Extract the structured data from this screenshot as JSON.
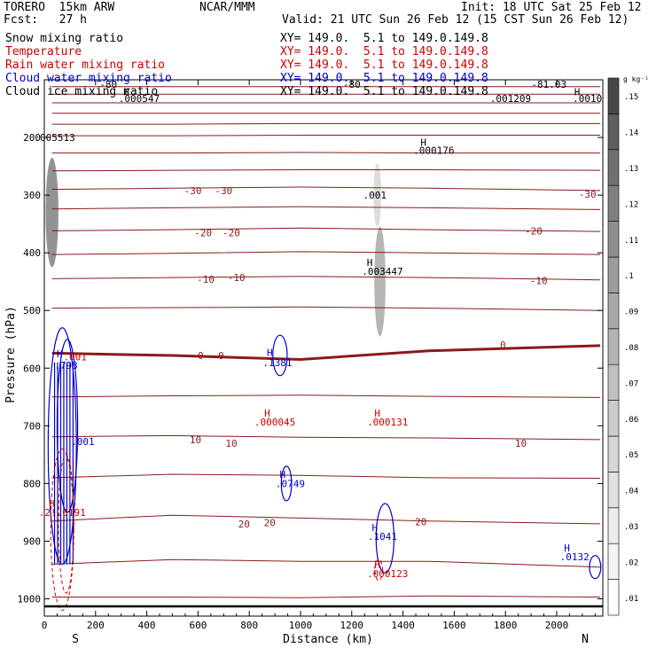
{
  "header": {
    "model": "TORERO  15km ARW",
    "org": "NCAR/MMM",
    "init": "Init: 18 UTC Sat 25 Feb 12",
    "fcst": "Fcst:   27 h",
    "valid": "Valid: 21 UTC Sun 26 Feb 12 (15 CST Sun 26 Feb 12)"
  },
  "legend": [
    {
      "name": "Snow mixing ratio",
      "xy": "XY= 149.0.  5.1 to 149.0.149.8",
      "color": "#000000"
    },
    {
      "name": "Temperature",
      "xy": "XY= 149.0.  5.1 to 149.0.149.8",
      "color": "#cc0000"
    },
    {
      "name": "Rain water mixing ratio",
      "xy": "XY= 149.0.  5.1 to 149.0.149.8",
      "color": "#cc0000"
    },
    {
      "name": "Cloud water mixing ratio",
      "xy": "XY= 149.0.  5.1 to 149.0.149.8",
      "color": "#0000cc"
    },
    {
      "name": "Cloud ice mixing ratio",
      "xy": "XY= 149.0.  5.1 to 149.0.149.8",
      "color": "#000000"
    }
  ],
  "chart_data": {
    "type": "contour-cross-section",
    "xlabel": "Distance (km)",
    "ylabel": "Pressure (hPa)",
    "xlim": [
      0,
      2180
    ],
    "ylim": [
      1030,
      100
    ],
    "xticks": [
      0,
      200,
      400,
      600,
      800,
      1000,
      1200,
      1400,
      1600,
      1800,
      2000
    ],
    "yticks": [
      200,
      300,
      400,
      500,
      600,
      700,
      800,
      900,
      1000
    ],
    "left_end": "S",
    "right_end": "N",
    "colorbar": {
      "unit": "g kg⁻¹",
      "levels": [
        ".01",
        ".02",
        ".03",
        ".04",
        ".05",
        ".06",
        ".07",
        ".08",
        ".09",
        ".1",
        ".11",
        ".12",
        ".13",
        ".14",
        ".15"
      ],
      "colors": [
        "#ffffff",
        "#f4f4f4",
        "#ececec",
        "#e0e0e0",
        "#d6d6d6",
        "#cbcbcb",
        "#c0c0c0",
        "#b4b4b4",
        "#a8a8a8",
        "#9c9c9c",
        "#8e8e8e",
        "#808080",
        "#707070",
        "#5e5e5e",
        "#484848"
      ]
    },
    "isotherms": [
      {
        "t": -80,
        "y": [
          112,
          112,
          112,
          112,
          112
        ]
      },
      {
        "t": -70,
        "y": [
          125,
          125,
          125,
          125,
          125
        ]
      },
      {
        "t": -60,
        "y": [
          140,
          140,
          140,
          140,
          140
        ]
      },
      {
        "t": -55,
        "y": [
          158,
          158,
          158,
          158,
          158
        ]
      },
      {
        "t": -50,
        "y": [
          177,
          177,
          176,
          176,
          176
        ]
      },
      {
        "t": -45,
        "y": [
          197,
          197,
          196,
          196,
          196
        ]
      },
      {
        "t": -40,
        "y": [
          227,
          227,
          226,
          227,
          227
        ]
      },
      {
        "t": -35,
        "y": [
          258,
          257,
          256,
          256,
          257
        ]
      },
      {
        "t": -30,
        "y": [
          290,
          288,
          286,
          288,
          292
        ]
      },
      {
        "t": -25,
        "y": [
          324,
          322,
          320,
          322,
          325
        ]
      },
      {
        "t": -20,
        "y": [
          362,
          360,
          357,
          360,
          363
        ]
      },
      {
        "t": -15,
        "y": [
          403,
          401,
          398,
          400,
          403
        ]
      },
      {
        "t": -10,
        "y": [
          445,
          443,
          441,
          443,
          447
        ]
      },
      {
        "t": -5,
        "y": [
          496,
          495,
          494,
          496,
          500
        ]
      },
      {
        "t": 0,
        "y": [
          574,
          578,
          585,
          570,
          561
        ]
      },
      {
        "t": 5,
        "y": [
          650,
          648,
          647,
          649,
          651
        ]
      },
      {
        "t": 10,
        "y": [
          719,
          717,
          720,
          721,
          724
        ]
      },
      {
        "t": 15,
        "y": [
          790,
          784,
          786,
          790,
          791
        ]
      },
      {
        "t": 20,
        "y": [
          865,
          855,
          860,
          865,
          870
        ]
      },
      {
        "t": 25,
        "y": [
          940,
          932,
          935,
          935,
          945
        ]
      },
      {
        "t": 30,
        "y": [
          997,
          997,
          998,
          995,
          997
        ]
      }
    ],
    "isotherm_x": [
      30,
      500,
      1000,
      1500,
      2170
    ],
    "isotherm_labels": [
      {
        "text": "-30",
        "x": 580,
        "y": 292,
        "color": "#8b1a1a"
      },
      {
        "text": "-30",
        "x": 700,
        "y": 292,
        "color": "#8b1a1a"
      },
      {
        "text": "-30",
        "x": 2120,
        "y": 298,
        "color": "#8b1a1a"
      },
      {
        "text": "-20",
        "x": 620,
        "y": 365,
        "color": "#8b1a1a"
      },
      {
        "text": "-20",
        "x": 730,
        "y": 365,
        "color": "#8b1a1a"
      },
      {
        "text": "-20",
        "x": 1910,
        "y": 362,
        "color": "#8b1a1a"
      },
      {
        "text": "-10",
        "x": 630,
        "y": 446,
        "color": "#8b1a1a"
      },
      {
        "text": "-10",
        "x": 750,
        "y": 443,
        "color": "#8b1a1a"
      },
      {
        "text": "-10",
        "x": 1930,
        "y": 448,
        "color": "#8b1a1a"
      },
      {
        "text": "0",
        "x": 610,
        "y": 578,
        "color": "#8b1a1a"
      },
      {
        "text": "0",
        "x": 690,
        "y": 578,
        "color": "#8b1a1a"
      },
      {
        "text": "0",
        "x": 1790,
        "y": 560,
        "color": "#8b1a1a"
      },
      {
        "text": "10",
        "x": 590,
        "y": 724,
        "color": "#8b1a1a"
      },
      {
        "text": "10",
        "x": 730,
        "y": 730,
        "color": "#8b1a1a"
      },
      {
        "text": "10",
        "x": 1860,
        "y": 730,
        "color": "#8b1a1a"
      },
      {
        "text": "20",
        "x": 780,
        "y": 870,
        "color": "#8b1a1a"
      },
      {
        "text": "20",
        "x": 880,
        "y": 868,
        "color": "#8b1a1a"
      },
      {
        "text": "20",
        "x": 1470,
        "y": 866,
        "color": "#8b1a1a"
      },
      {
        "text": "-80",
        "x": 250,
        "y": 108,
        "color": "#000000"
      },
      {
        "text": "-80",
        "x": 1200,
        "y": 108,
        "color": "#000000"
      },
      {
        "text": "-81.03",
        "x": 1970,
        "y": 108,
        "color": "#000000"
      }
    ],
    "extrema_labels": [
      {
        "text": "H",
        "x": 320,
        "y": 121,
        "color": "#000000"
      },
      {
        "text": ".000547",
        "x": 370,
        "y": 132,
        "color": "#000000"
      },
      {
        "text": ".005513",
        "x": 40,
        "y": 200,
        "color": "#000000"
      },
      {
        "text": "H",
        "x": 1480,
        "y": 208,
        "color": "#000000"
      },
      {
        "text": ".000176",
        "x": 1520,
        "y": 222,
        "color": "#000000"
      },
      {
        "text": ".001",
        "x": 1290,
        "y": 300,
        "color": "#000000"
      },
      {
        "text": "H",
        "x": 1270,
        "y": 417,
        "color": "#000000"
      },
      {
        "text": ".003447",
        "x": 1320,
        "y": 432,
        "color": "#000000"
      },
      {
        "text": ".001209",
        "x": 1820,
        "y": 132,
        "color": "#000000"
      },
      {
        "text": "H",
        "x": 2080,
        "y": 121,
        "color": "#000000"
      },
      {
        "text": ".0010",
        "x": 2120,
        "y": 132,
        "color": "#000000"
      },
      {
        "text": "H",
        "x": 60,
        "y": 575,
        "color": "#0000cc"
      },
      {
        "text": ".001",
        "x": 120,
        "y": 580,
        "color": "#cc0000"
      },
      {
        "text": ".793",
        "x": 85,
        "y": 595,
        "color": "#0000cc"
      },
      {
        "text": "H",
        "x": 880,
        "y": 573,
        "color": "#0000cc"
      },
      {
        "text": ".1381",
        "x": 910,
        "y": 590,
        "color": "#0000cc"
      },
      {
        "text": "H",
        "x": 870,
        "y": 678,
        "color": "#cc0000"
      },
      {
        "text": ".000045",
        "x": 900,
        "y": 693,
        "color": "#cc0000"
      },
      {
        "text": "H",
        "x": 1300,
        "y": 678,
        "color": "#cc0000"
      },
      {
        "text": ".000131",
        "x": 1340,
        "y": 693,
        "color": "#cc0000"
      },
      {
        "text": ".001",
        "x": 150,
        "y": 727,
        "color": "#0000cc"
      },
      {
        "text": "H",
        "x": 930,
        "y": 784,
        "color": "#0000cc"
      },
      {
        "text": ".0749",
        "x": 960,
        "y": 800,
        "color": "#0000cc"
      },
      {
        "text": "H",
        "x": 30,
        "y": 835,
        "color": "#cc0000"
      },
      {
        "text": ".2!.0191",
        "x": 70,
        "y": 850,
        "color": "#cc0000"
      },
      {
        "text": "H",
        "x": 1290,
        "y": 876,
        "color": "#0000cc"
      },
      {
        "text": ".1041",
        "x": 1320,
        "y": 892,
        "color": "#0000cc"
      },
      {
        "text": "H",
        "x": 2040,
        "y": 912,
        "color": "#0000cc"
      },
      {
        "text": ".0132",
        "x": 2070,
        "y": 927,
        "color": "#0000cc"
      },
      {
        "text": "H",
        "x": 1300,
        "y": 940,
        "color": "#cc0000"
      },
      {
        "text": ".000123",
        "x": 1340,
        "y": 956,
        "color": "#cc0000"
      }
    ],
    "shaded_regions": [
      {
        "x": 30,
        "y": 330,
        "rx": 25,
        "ry": 95,
        "level": 0.12
      },
      {
        "x": 1310,
        "y": 450,
        "rx": 22,
        "ry": 95,
        "level": 0.09
      },
      {
        "x": 1300,
        "y": 300,
        "rx": 15,
        "ry": 55,
        "level": 0.05
      }
    ],
    "cloud_water_contours": [
      {
        "x": 70,
        "y": 735,
        "rx": 55,
        "ry": 205
      },
      {
        "x": 90,
        "y": 700,
        "rx": 40,
        "ry": 150
      },
      {
        "x": 920,
        "y": 578,
        "rx": 28,
        "ry": 35
      },
      {
        "x": 945,
        "y": 800,
        "rx": 20,
        "ry": 30
      },
      {
        "x": 1330,
        "y": 895,
        "rx": 35,
        "ry": 60
      },
      {
        "x": 2150,
        "y": 945,
        "rx": 22,
        "ry": 20
      }
    ],
    "rain_contours": [
      {
        "x": 70,
        "y": 880,
        "rx": 45,
        "ry": 140
      },
      {
        "x": 85,
        "y": 870,
        "rx": 30,
        "ry": 120
      },
      {
        "x": 1305,
        "y": 950,
        "rx": 15,
        "ry": 18
      }
    ]
  }
}
